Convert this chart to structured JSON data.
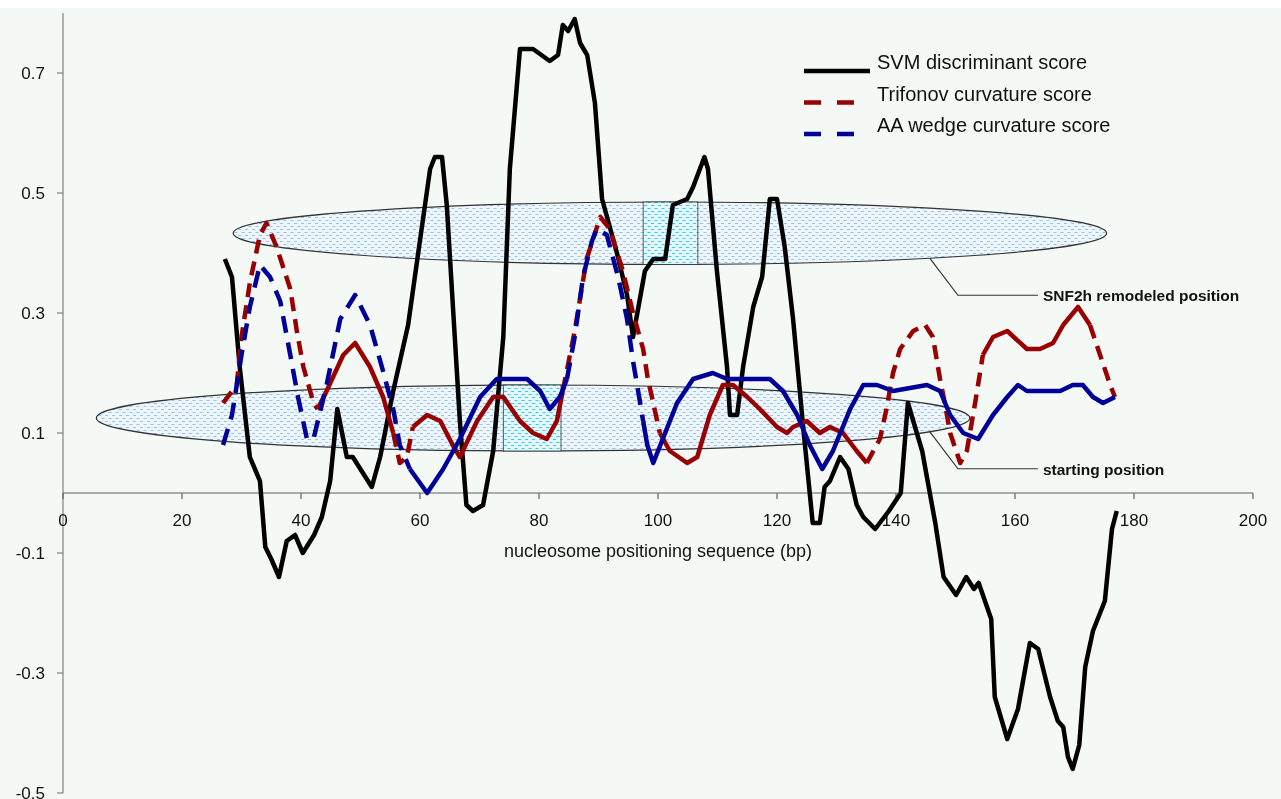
{
  "chart_data": {
    "type": "line",
    "xlabel": "nucleosome positioning sequence (bp)",
    "xlim": [
      0,
      200
    ],
    "xticks": [
      0,
      20,
      40,
      60,
      80,
      100,
      120,
      140,
      160,
      180,
      200
    ],
    "ylim": [
      -0.5,
      0.8
    ],
    "yticks": [
      -0.5,
      -0.3,
      -0.1,
      0.1,
      0.3,
      0.5,
      0.7
    ],
    "legend": "top right",
    "annotations": [
      "SNF2h remodeled position",
      "starting position"
    ],
    "series": [
      {
        "name": "SVM discriminant score",
        "color": "#000000",
        "line_style": "solid",
        "x": [
          27.2,
          28.4,
          29.7,
          31.4,
          33.1,
          34,
          35,
          36.3,
          37.6,
          39,
          40.3,
          42.2,
          43.5,
          44.9,
          46.1,
          47.7,
          48.7,
          51.9,
          53.3,
          55.5,
          58,
          59.7,
          61.7,
          62.5,
          63.7,
          64.5,
          66.7,
          67.8,
          68.9,
          70.6,
          72.3,
          74,
          75.1,
          76.8,
          79,
          81.8,
          83.2,
          84,
          84.9,
          86,
          86.9,
          88.1,
          89.4,
          90.6,
          93.1,
          94.8,
          95.8,
          97.8,
          99.2,
          101.2,
          102.5,
          104.9,
          105.9,
          107.8,
          108.4,
          109.9,
          111.6,
          112.1,
          113.3,
          114.3,
          116,
          117.5,
          118.8,
          120,
          121.3,
          122.7,
          124.4,
          126,
          127.2,
          128,
          128.9,
          130.6,
          132,
          133.4,
          134.5,
          136.5,
          138.8,
          140.8,
          142,
          144.4,
          146.6,
          148,
          150.1,
          151.8,
          153.1,
          153.9,
          156,
          156.6,
          158.7,
          160.5,
          162.5,
          163.9,
          165.9,
          167.2,
          168.1,
          168.9,
          169.7,
          170.8,
          171.8,
          173.1,
          175.1,
          176.3,
          177.1
        ],
        "values": [
          0.39,
          0.36,
          0.21,
          0.06,
          0.02,
          -0.09,
          -0.11,
          -0.14,
          -0.08,
          -0.07,
          -0.1,
          -0.07,
          -0.04,
          0.02,
          0.14,
          0.06,
          0.06,
          0.01,
          0.06,
          0.17,
          0.28,
          0.4,
          0.54,
          0.56,
          0.56,
          0.48,
          0.12,
          -0.02,
          -0.03,
          -0.02,
          0.07,
          0.26,
          0.54,
          0.74,
          0.74,
          0.72,
          0.73,
          0.78,
          0.77,
          0.79,
          0.75,
          0.73,
          0.65,
          0.49,
          0.4,
          0.33,
          0.26,
          0.37,
          0.39,
          0.39,
          0.48,
          0.49,
          0.51,
          0.56,
          0.54,
          0.37,
          0.21,
          0.13,
          0.13,
          0.21,
          0.31,
          0.36,
          0.49,
          0.49,
          0.41,
          0.29,
          0.11,
          -0.05,
          -0.05,
          0.01,
          0.02,
          0.06,
          0.04,
          -0.02,
          -0.04,
          -0.06,
          -0.03,
          0,
          0.15,
          0.07,
          -0.05,
          -0.14,
          -0.17,
          -0.14,
          -0.16,
          -0.15,
          -0.21,
          -0.34,
          -0.41,
          -0.36,
          -0.25,
          -0.26,
          -0.34,
          -0.38,
          -0.39,
          -0.44,
          -0.46,
          -0.42,
          -0.29,
          -0.23,
          -0.18,
          -0.06,
          -0.03
        ]
      },
      {
        "name": "Trifonov curvature score",
        "color": "#990000",
        "line_style": "dashed",
        "x": [
          26.9,
          29.2,
          30,
          31.4,
          33.1,
          34.2,
          35.9,
          38.2,
          39.3,
          40.4,
          42.1,
          42.8,
          44.3,
          47.1,
          49.1,
          51.6,
          53.8,
          55.5,
          56.6,
          57.8,
          58.8,
          61.2,
          63.4,
          65.5,
          66.7,
          69.6,
          72.3,
          74,
          76.8,
          79,
          81.3,
          83,
          84,
          86,
          88,
          90.3,
          91.9,
          94.1,
          95.8,
          97.5,
          98.3,
          99.2,
          100.3,
          102,
          104.9,
          106.6,
          108.7,
          110.9,
          112.6,
          115,
          117.1,
          120,
          121.7,
          122.7,
          125,
          127.2,
          128.9,
          131.1,
          133.4,
          135.1,
          137.3,
          138.4,
          139.5,
          140.7,
          142.9,
          144.9,
          146.2,
          147.4,
          148.2,
          149.1,
          150.8,
          151.9,
          153.3,
          154.6,
          156.3,
          158.7,
          162,
          164.2,
          166.4,
          168.1,
          170.6,
          172.6,
          174.3,
          176,
          176.8
        ],
        "values": [
          0.15,
          0.18,
          0.26,
          0.35,
          0.43,
          0.45,
          0.41,
          0.34,
          0.27,
          0.21,
          0.15,
          0.14,
          null,
          null,
          null,
          null,
          null,
          0.1,
          0.05,
          0.06,
          0.11,
          null,
          null,
          null,
          null,
          null,
          null,
          null,
          null,
          null,
          null,
          null,
          0.17,
          0.27,
          0.39,
          0.46,
          0.44,
          0.37,
          0.3,
          0.24,
          0.19,
          0.15,
          0.1,
          null,
          null,
          null,
          null,
          null,
          null,
          null,
          null,
          null,
          null,
          null,
          null,
          null,
          null,
          null,
          null,
          0.05,
          0.09,
          0.14,
          0.2,
          0.24,
          0.27,
          0.28,
          0.26,
          0.19,
          0.15,
          0.1,
          0.05,
          0.07,
          0.15,
          0.23,
          null,
          null,
          null,
          null,
          null,
          null,
          null,
          0.28,
          0.23,
          0.18,
          0.16
        ]
      },
      {
        "color": "#990000",
        "line_style": "solid",
        "x": [
          42.8,
          44.3,
          47.1,
          49.1,
          51.6,
          53.8,
          55.5,
          56.6,
          57.8,
          58.8,
          61.2,
          63.4,
          65.5,
          66.7,
          69.6,
          72.3,
          74,
          76.8,
          79,
          81.3,
          83,
          84,
          86,
          88,
          90.3,
          91.9,
          94.1,
          95.8,
          97.5,
          98.3,
          99.2,
          100.3,
          102,
          104.9,
          106.6,
          108.7,
          110.9,
          112.6,
          115,
          117.1,
          120,
          121.7,
          122.7,
          125,
          127.2,
          128.9,
          131.1,
          133.4,
          135.1,
          137.3,
          138.4,
          139.5,
          140.7,
          142.9,
          144.9,
          146.2,
          147.4,
          148.2,
          149.1,
          150.8,
          151.9,
          153.3,
          154.6,
          156.3,
          158.7,
          162,
          164.2,
          166.4,
          168.1,
          170.6,
          172.6
        ],
        "values": [
          0.14,
          0.17,
          0.23,
          0.25,
          0.21,
          0.16,
          0.1,
          null,
          null,
          0.11,
          0.13,
          0.12,
          0.08,
          0.06,
          0.12,
          0.16,
          0.16,
          0.12,
          0.1,
          0.09,
          0.12,
          0.17,
          null,
          null,
          null,
          null,
          null,
          null,
          null,
          null,
          null,
          0.1,
          0.07,
          0.05,
          0.06,
          0.13,
          0.18,
          0.18,
          0.16,
          0.14,
          0.11,
          0.1,
          0.11,
          0.12,
          0.1,
          0.11,
          0.1,
          0.07,
          0.05,
          null,
          null,
          null,
          null,
          null,
          null,
          null,
          null,
          null,
          null,
          null,
          null,
          null,
          0.23,
          0.26,
          0.27,
          0.24,
          0.24,
          0.25,
          0.28,
          0.31,
          0.28
        ]
      },
      {
        "name": "AA wedge curvature score",
        "color": "#000099",
        "line_style": "dashed",
        "x": [
          26.9,
          28.4,
          30,
          31.4,
          33.1,
          34.8,
          36.5,
          38.2,
          39.5,
          41,
          42.1,
          44.3,
          46.6,
          49.1,
          51.6,
          53.6,
          55.5,
          56.6,
          58.3,
          61.2,
          63.9,
          66.7,
          70.1,
          72.9,
          78,
          80.2,
          81.8,
          83.5,
          84.7,
          86,
          87.4,
          88.9,
          89.7,
          91.4,
          93.3,
          94.8,
          95.8,
          97,
          97.5
        ],
        "values": [
          0.08,
          0.13,
          0.23,
          0.31,
          0.38,
          0.36,
          0.32,
          0.23,
          0.16,
          0.09,
          0.09,
          0.18,
          0.29,
          0.33,
          0.28,
          0.21,
          0.14,
          0.08,
          0.04,
          null,
          null,
          null,
          null,
          null,
          null,
          null,
          null,
          null,
          0.19,
          0.26,
          0.36,
          0.42,
          0.44,
          0.43,
          0.36,
          0.29,
          0.22,
          0.15,
          0.12
        ]
      },
      {
        "color": "#000099",
        "line_style": "solid",
        "x": [
          58.3,
          61.2,
          63.9,
          66.7,
          70.1,
          72.9,
          78,
          80.2,
          81.8,
          83.5,
          84.7,
          86,
          87.4,
          88.9,
          89.7,
          91.4,
          93.3,
          94.8,
          95.8,
          97,
          97.5,
          98.2,
          99.2,
          100.8,
          103.2,
          105.9,
          109.2,
          111.6,
          115,
          118.8,
          121,
          123.4,
          125.5,
          127.6,
          129.4,
          132.3,
          134.5,
          136.8,
          139.5,
          145.2,
          147.4,
          149.1,
          151.3,
          153.8,
          156.3,
          158.7,
          160.5,
          162,
          167.6,
          169.7,
          171.4,
          173.1,
          174.8,
          176.8
        ],
        "values": [
          0.04,
          0,
          0.04,
          0.09,
          0.16,
          0.19,
          0.19,
          0.17,
          0.14,
          0.16,
          0.19,
          null,
          null,
          null,
          null,
          null,
          null,
          null,
          null,
          null,
          0.12,
          0.08,
          0.05,
          0.09,
          0.15,
          0.19,
          0.2,
          0.19,
          0.19,
          0.19,
          0.17,
          0.13,
          0.08,
          0.04,
          0.07,
          0.14,
          0.18,
          0.18,
          0.17,
          0.18,
          0.17,
          0.13,
          0.1,
          0.09,
          0.13,
          0.16,
          0.18,
          0.17,
          0.17,
          0.18,
          0.18,
          0.16,
          0.15,
          0.16
        ]
      }
    ]
  }
}
